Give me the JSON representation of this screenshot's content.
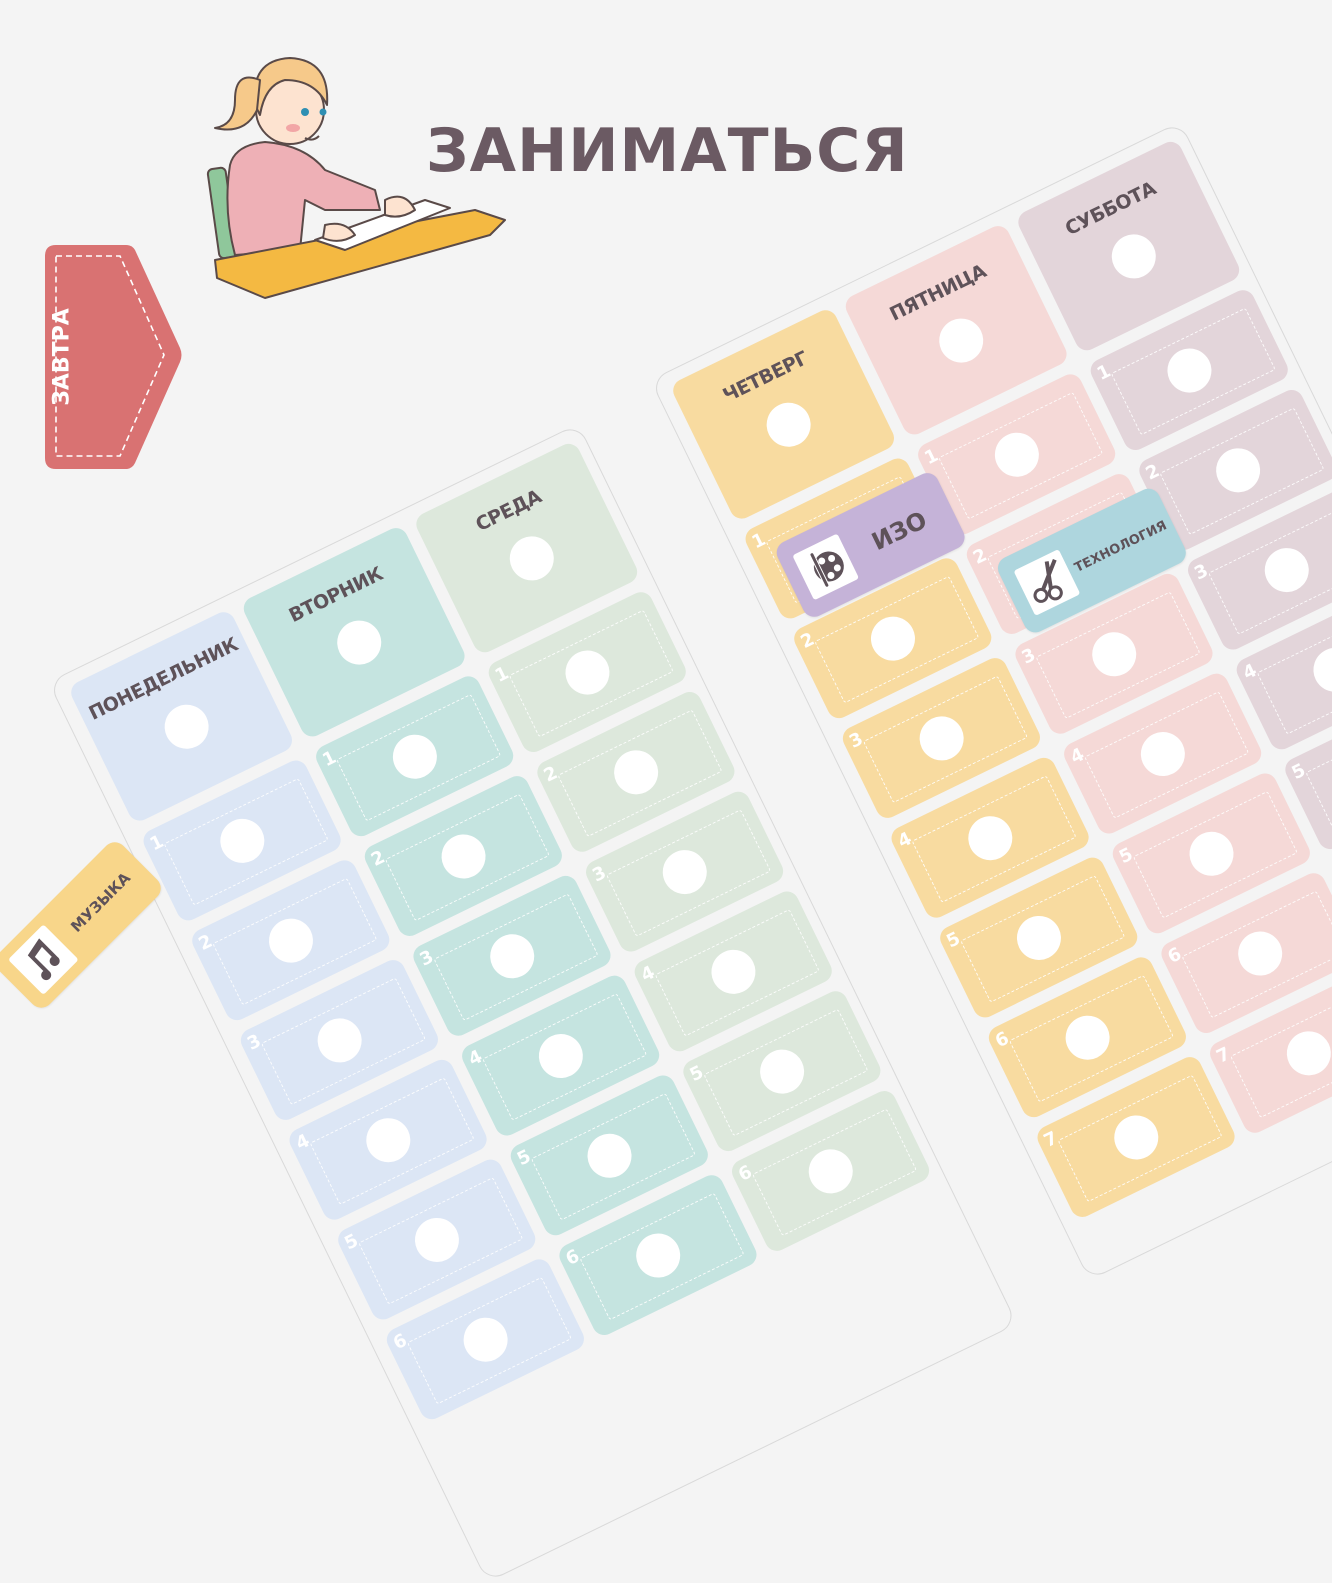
{
  "title": "ЗАНИМАТЬСЯ",
  "tag": {
    "label": "ЗАВТРА",
    "color": "#d97272"
  },
  "boards": [
    {
      "days": [
        {
          "name": "ПОНЕДЕЛЬНИК",
          "color": "#dce6f5"
        },
        {
          "name": "ВТОРНИК",
          "color": "#c5e4e0"
        },
        {
          "name": "СРЕДА",
          "color": "#dde8dc"
        }
      ],
      "rows": [
        "1",
        "2",
        "3",
        "4",
        "5",
        "6"
      ]
    },
    {
      "days": [
        {
          "name": "ЧЕТВЕРГ",
          "color": "#f8dba0"
        },
        {
          "name": "ПЯТНИЦА",
          "color": "#f5d9d7"
        },
        {
          "name": "СУББОТА",
          "color": "#e3d5da"
        }
      ],
      "rows": [
        "1",
        "2",
        "3",
        "4",
        "5",
        "6",
        "7"
      ]
    }
  ],
  "stickers": {
    "izo": {
      "label": "ИЗО",
      "icon": "palette-brush-icon",
      "color": "#c5b3d8"
    },
    "tech": {
      "label": "ТЕХНОЛОГИЯ",
      "icon": "scissors-icon",
      "color": "#aed6de"
    },
    "music": {
      "label": "МУЗЫКА",
      "icon": "music-note-icon",
      "color": "#f8d68a"
    }
  }
}
